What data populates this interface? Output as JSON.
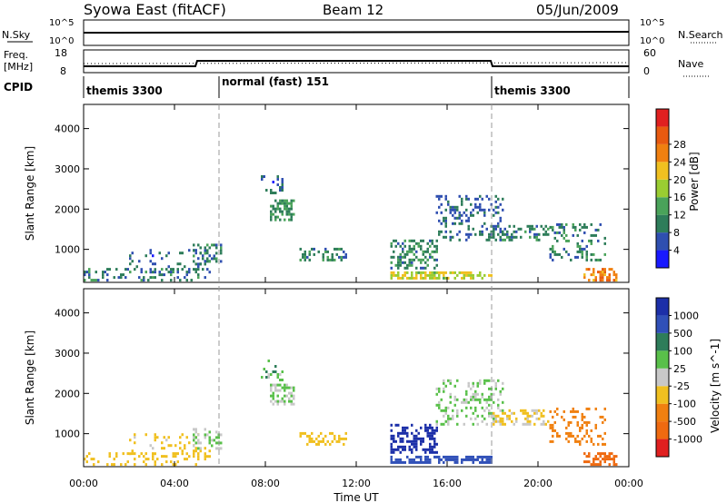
{
  "header": {
    "station": "Syowa East (fitACF)",
    "beam": "Beam 12",
    "date": "05/Jun/2009"
  },
  "sky_panel": {
    "left_label": "N.Sky",
    "right_label": "N.Search",
    "tick_high": "10^5",
    "tick_low": "10^0"
  },
  "freq_panel": {
    "left_label_1": "Freq.",
    "left_label_2": "[MHz]",
    "ticks_left": [
      "18",
      "8"
    ],
    "ticks_right": [
      "60",
      "0"
    ],
    "right_label": "Nave"
  },
  "cpid_panel": {
    "label": "CPID",
    "segments": [
      {
        "name": "themis 3300",
        "start_h": 0,
        "end_h": 6
      },
      {
        "name": "normal (fast) 151",
        "start_h": 6,
        "end_h": 18
      },
      {
        "name": "themis 3300",
        "start_h": 18,
        "end_h": 24
      }
    ]
  },
  "colors": {
    "power_scale": [
      "#1919ff",
      "#2f4fb0",
      "#2e7d5a",
      "#4aa35a",
      "#9acd32",
      "#f0c020",
      "#f08010",
      "#e85a10",
      "#e02020"
    ],
    "velocity_scale": [
      "#1c2fa8",
      "#3050b8",
      "#2e7d5a",
      "#59c04a",
      "#c8c8c8",
      "#f0c020",
      "#f08010",
      "#ef6a10",
      "#e02020"
    ]
  },
  "chart_data": [
    {
      "type": "heatmap",
      "name": "power",
      "xlabel": "Time UT",
      "ylabel": "Slant Range [km]",
      "xlim": [
        0,
        24
      ],
      "ylim": [
        180,
        4600
      ],
      "x_ticks": [
        "00:00",
        "04:00",
        "08:00",
        "12:00",
        "16:00",
        "20:00",
        "00:00"
      ],
      "y_ticks": [
        "1000",
        "2000",
        "3000",
        "4000"
      ],
      "colorbar": {
        "label": "Power [dB]",
        "ticks": [
          "4",
          "8",
          "12",
          "16",
          "20",
          "24",
          "28"
        ],
        "range": [
          0,
          30
        ]
      },
      "regions": [
        {
          "t0": 0.0,
          "t1": 5.5,
          "r0": 200,
          "r1": 500,
          "value": 8,
          "density": 0.25
        },
        {
          "t0": 2.0,
          "t1": 5.5,
          "r0": 400,
          "r1": 1000,
          "value": 6,
          "density": 0.15
        },
        {
          "t0": 4.8,
          "t1": 6.0,
          "r0": 600,
          "r1": 1100,
          "value": 8,
          "density": 0.35
        },
        {
          "t0": 8.2,
          "t1": 9.2,
          "r0": 1700,
          "r1": 2200,
          "value": 10,
          "density": 0.55
        },
        {
          "t0": 7.8,
          "t1": 8.7,
          "r0": 2300,
          "r1": 2800,
          "value": 6,
          "density": 0.2
        },
        {
          "t0": 9.5,
          "t1": 11.5,
          "r0": 700,
          "r1": 1000,
          "value": 8,
          "density": 0.4
        },
        {
          "t0": 13.5,
          "t1": 15.5,
          "r0": 500,
          "r1": 1200,
          "value": 9,
          "density": 0.45
        },
        {
          "t0": 13.5,
          "t1": 18.0,
          "r0": 250,
          "r1": 450,
          "value": 16,
          "density": 0.6
        },
        {
          "t0": 15.5,
          "t1": 18.5,
          "r0": 1200,
          "r1": 2300,
          "value": 7,
          "density": 0.3
        },
        {
          "t0": 18.0,
          "t1": 20.5,
          "r0": 1200,
          "r1": 1600,
          "value": 8,
          "density": 0.4
        },
        {
          "t0": 20.5,
          "t1": 23.0,
          "r0": 700,
          "r1": 1600,
          "value": 8,
          "density": 0.25
        },
        {
          "t0": 22.0,
          "t1": 23.5,
          "r0": 200,
          "r1": 500,
          "value": 22,
          "density": 0.5
        }
      ]
    },
    {
      "type": "heatmap",
      "name": "velocity",
      "xlabel": "Time UT",
      "ylabel": "Slant Range [km]",
      "xlim": [
        0,
        24
      ],
      "ylim": [
        180,
        4600
      ],
      "x_ticks": [
        "00:00",
        "04:00",
        "08:00",
        "12:00",
        "16:00",
        "20:00",
        "00:00"
      ],
      "y_ticks": [
        "1000",
        "2000",
        "3000",
        "4000"
      ],
      "colorbar": {
        "label": "Velocity [m s^-1]",
        "ticks": [
          "1000",
          "500",
          "100",
          "25",
          "-25",
          "-100",
          "-500",
          "-1000"
        ]
      },
      "regions": [
        {
          "t0": 0.0,
          "t1": 5.5,
          "r0": 200,
          "r1": 500,
          "value": -60,
          "density": 0.25
        },
        {
          "t0": 2.0,
          "t1": 5.5,
          "r0": 400,
          "r1": 1000,
          "value": -40,
          "density": 0.15
        },
        {
          "t0": 4.8,
          "t1": 6.0,
          "r0": 600,
          "r1": 1100,
          "value": 0,
          "density": 0.35
        },
        {
          "t0": 8.2,
          "t1": 9.2,
          "r0": 1700,
          "r1": 2200,
          "value": 0,
          "density": 0.55
        },
        {
          "t0": 7.8,
          "t1": 8.7,
          "r0": 2300,
          "r1": 2800,
          "value": 10,
          "density": 0.2
        },
        {
          "t0": 9.5,
          "t1": 11.5,
          "r0": 700,
          "r1": 1000,
          "value": -80,
          "density": 0.4
        },
        {
          "t0": 13.5,
          "t1": 15.5,
          "r0": 500,
          "r1": 1200,
          "value": 600,
          "density": 0.45
        },
        {
          "t0": 13.5,
          "t1": 18.0,
          "r0": 250,
          "r1": 450,
          "value": 300,
          "density": 0.6
        },
        {
          "t0": 15.5,
          "t1": 18.5,
          "r0": 1200,
          "r1": 2300,
          "value": 5,
          "density": 0.3
        },
        {
          "t0": 18.0,
          "t1": 20.5,
          "r0": 1200,
          "r1": 1600,
          "value": -30,
          "density": 0.4
        },
        {
          "t0": 20.5,
          "t1": 23.0,
          "r0": 700,
          "r1": 1600,
          "value": -200,
          "density": 0.25
        },
        {
          "t0": 22.0,
          "t1": 23.5,
          "r0": 200,
          "r1": 500,
          "value": -700,
          "density": 0.5
        }
      ]
    }
  ]
}
